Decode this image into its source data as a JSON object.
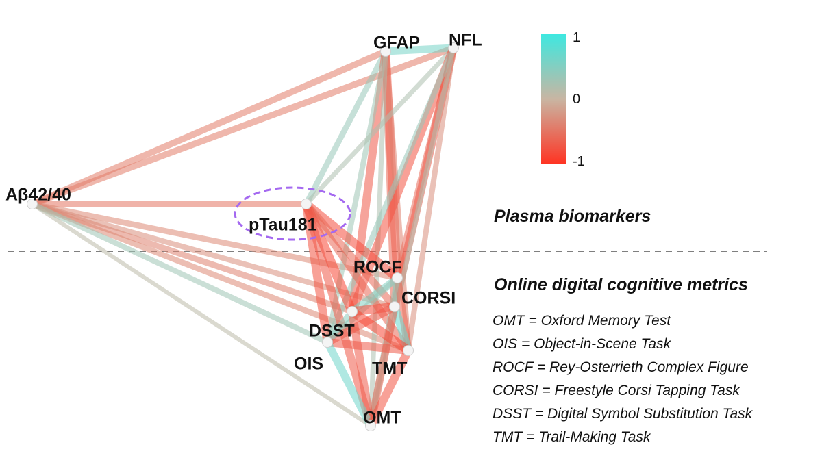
{
  "colors": {
    "positive": "#3ee8e0",
    "neutral": "#c9b5a2",
    "negative": "#ff3322",
    "highlight": "#a469f0",
    "divider": "#555555"
  },
  "colorbar": {
    "max_label": "1",
    "mid_label": "0",
    "min_label": "-1"
  },
  "sections": {
    "upper": "Plasma biomarkers",
    "lower": "Online digital cognitive metrics"
  },
  "nodes": [
    {
      "id": "GFAP",
      "label": "GFAP",
      "group": "plasma"
    },
    {
      "id": "NFL",
      "label": "NFL",
      "group": "plasma"
    },
    {
      "id": "AB",
      "label": "Aβ42/40",
      "group": "plasma"
    },
    {
      "id": "PTAU",
      "label": "pTau181",
      "group": "plasma",
      "highlighted": true
    },
    {
      "id": "ROCF",
      "label": "ROCF",
      "group": "cognitive"
    },
    {
      "id": "CORSI",
      "label": "CORSI",
      "group": "cognitive"
    },
    {
      "id": "DSST",
      "label": "DSST",
      "group": "cognitive"
    },
    {
      "id": "OIS",
      "label": "OIS",
      "group": "cognitive"
    },
    {
      "id": "TMT",
      "label": "TMT",
      "group": "cognitive"
    },
    {
      "id": "OMT",
      "label": "OMT",
      "group": "cognitive"
    }
  ],
  "edges": [
    {
      "a": "AB",
      "b": "GFAP",
      "r": -0.45
    },
    {
      "a": "AB",
      "b": "NFL",
      "r": -0.45
    },
    {
      "a": "AB",
      "b": "PTAU",
      "r": -0.5
    },
    {
      "a": "AB",
      "b": "ROCF",
      "r": -0.35
    },
    {
      "a": "AB",
      "b": "DSST",
      "r": -0.4
    },
    {
      "a": "AB",
      "b": "CORSI",
      "r": -0.3
    },
    {
      "a": "AB",
      "b": "TMT",
      "r": -0.35
    },
    {
      "a": "AB",
      "b": "OIS",
      "r": 0.3
    },
    {
      "a": "AB",
      "b": "OMT",
      "r": 0.1
    },
    {
      "a": "GFAP",
      "b": "NFL",
      "r": 0.6
    },
    {
      "a": "GFAP",
      "b": "PTAU",
      "r": 0.35
    },
    {
      "a": "GFAP",
      "b": "ROCF",
      "r": -0.75
    },
    {
      "a": "GFAP",
      "b": "CORSI",
      "r": -0.6
    },
    {
      "a": "GFAP",
      "b": "DSST",
      "r": -0.7
    },
    {
      "a": "GFAP",
      "b": "OIS",
      "r": 0.3
    },
    {
      "a": "GFAP",
      "b": "TMT",
      "r": -0.4
    },
    {
      "a": "GFAP",
      "b": "OMT",
      "r": 0.2
    },
    {
      "a": "NFL",
      "b": "PTAU",
      "r": 0.2
    },
    {
      "a": "NFL",
      "b": "ROCF",
      "r": -0.55
    },
    {
      "a": "NFL",
      "b": "CORSI",
      "r": -0.7
    },
    {
      "a": "NFL",
      "b": "DSST",
      "r": -0.75
    },
    {
      "a": "NFL",
      "b": "OIS",
      "r": 0.35
    },
    {
      "a": "NFL",
      "b": "TMT",
      "r": -0.3
    },
    {
      "a": "NFL",
      "b": "OMT",
      "r": 0.2
    },
    {
      "a": "PTAU",
      "b": "ROCF",
      "r": -0.8
    },
    {
      "a": "PTAU",
      "b": "CORSI",
      "r": -0.6
    },
    {
      "a": "PTAU",
      "b": "DSST",
      "r": -0.85
    },
    {
      "a": "PTAU",
      "b": "OIS",
      "r": -0.75
    },
    {
      "a": "PTAU",
      "b": "TMT",
      "r": -0.6
    },
    {
      "a": "PTAU",
      "b": "OMT",
      "r": -0.7
    },
    {
      "a": "ROCF",
      "b": "CORSI",
      "r": 0.4
    },
    {
      "a": "ROCF",
      "b": "DSST",
      "r": 0.5
    },
    {
      "a": "ROCF",
      "b": "OIS",
      "r": 0.35
    },
    {
      "a": "ROCF",
      "b": "TMT",
      "r": -0.6
    },
    {
      "a": "ROCF",
      "b": "OMT",
      "r": 0.3
    },
    {
      "a": "CORSI",
      "b": "DSST",
      "r": -0.8
    },
    {
      "a": "CORSI",
      "b": "TMT",
      "r": 0.7
    },
    {
      "a": "CORSI",
      "b": "OIS",
      "r": -0.7
    },
    {
      "a": "CORSI",
      "b": "OMT",
      "r": -0.6
    },
    {
      "a": "DSST",
      "b": "OIS",
      "r": 0.45
    },
    {
      "a": "DSST",
      "b": "TMT",
      "r": -0.85
    },
    {
      "a": "DSST",
      "b": "OMT",
      "r": -0.7
    },
    {
      "a": "OIS",
      "b": "TMT",
      "r": -0.7
    },
    {
      "a": "OIS",
      "b": "OMT",
      "r": 0.65
    },
    {
      "a": "TMT",
      "b": "OMT",
      "r": -0.75
    }
  ],
  "legend": [
    "OMT = Oxford Memory Test",
    "OIS = Object-in-Scene Task",
    "ROCF  = Rey-Osterrieth Complex Figure",
    "CORSI = Freestyle Corsi Tapping Task",
    "DSST = Digital Symbol Substitution Task",
    "TMT = Trail-Making Task"
  ]
}
